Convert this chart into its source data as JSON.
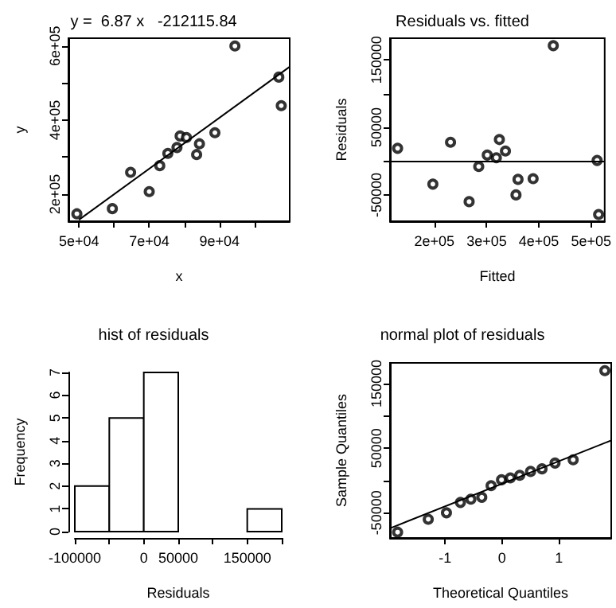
{
  "chart_data": [
    {
      "type": "scatter",
      "title": "y =  6.87 x   -212115.84",
      "xlabel": "x",
      "ylabel": "y",
      "marker": "circle",
      "grid": false,
      "xlim": [
        47000,
        110000
      ],
      "ylim": [
        127000,
        621000
      ],
      "xticks": [
        {
          "value": 50000,
          "label": "5e+04"
        },
        {
          "value": 60000,
          "label": null
        },
        {
          "value": 70000,
          "label": "7e+04"
        },
        {
          "value": 80000,
          "label": null
        },
        {
          "value": 90000,
          "label": "9e+04"
        },
        {
          "value": 100000,
          "label": null
        }
      ],
      "yticks": [
        {
          "value": 200000,
          "label": "2e+05"
        },
        {
          "value": 300000,
          "label": null
        },
        {
          "value": 400000,
          "label": "4e+05"
        },
        {
          "value": 500000,
          "label": null
        },
        {
          "value": 600000,
          "label": "6e+05"
        }
      ],
      "series": [
        {
          "type": "scatter",
          "color": "#000000",
          "x": [
            49400,
            59500,
            64700,
            70000,
            73000,
            75300,
            77900,
            78800,
            80600,
            83500,
            84300,
            88700,
            94400,
            106900,
            107600
          ],
          "values": [
            147000,
            161000,
            259000,
            207000,
            277000,
            310000,
            326000,
            357000,
            353000,
            307000,
            336000,
            366000,
            600000,
            516000,
            439000
          ]
        },
        {
          "type": "line",
          "marker": "none",
          "color": "#000000",
          "x": [
            50000,
            110000
          ],
          "values": [
            131000,
            544000
          ]
        }
      ]
    },
    {
      "type": "scatter",
      "title": "Residuals vs. fitted",
      "xlabel": "Fitted",
      "ylabel": "Residuals",
      "marker": "circle",
      "grid": false,
      "xlim": [
        115000,
        526000
      ],
      "ylim": [
        -89000,
        182000
      ],
      "xticks": [
        {
          "value": 200000,
          "label": "2e+05"
        },
        {
          "value": 300000,
          "label": "3e+05"
        },
        {
          "value": 400000,
          "label": "4e+05"
        },
        {
          "value": 500000,
          "label": "5e+05"
        }
      ],
      "yticks": [
        {
          "value": -50000,
          "label": "-50000"
        },
        {
          "value": 0,
          "label": null
        },
        {
          "value": 50000,
          "label": "50000"
        },
        {
          "value": 100000,
          "label": null
        },
        {
          "value": 150000,
          "label": "150000"
        }
      ],
      "ref_lines": [
        {
          "axis": "y",
          "value": 0,
          "color": "#000000"
        }
      ],
      "series": [
        {
          "type": "scatter",
          "color": "#000000",
          "x": [
            129600,
            197100,
            230900,
            266500,
            284900,
            301200,
            318600,
            324400,
            336000,
            356200,
            360100,
            389000,
            427600,
            511500,
            514400
          ],
          "values": [
            19000,
            -34000,
            28000,
            -60000,
            -8000,
            9000,
            5000,
            32000,
            15000,
            -50000,
            -27000,
            -26000,
            171000,
            1000,
            -79000
          ]
        }
      ]
    },
    {
      "type": "histogram",
      "title": "hist of residuals",
      "xlabel": "Residuals",
      "ylabel": "Frequency",
      "color": "#ffffff",
      "grid": false,
      "bins": [
        -100000,
        -50000,
        0,
        50000,
        100000,
        150000,
        200000
      ],
      "values": [
        2,
        5,
        7,
        0,
        0,
        1
      ],
      "xlim": [
        -100000,
        200000
      ],
      "ylim": [
        0,
        7
      ],
      "xticks": [
        -100000,
        {
          "value": -50000,
          "label": null
        },
        0,
        50000,
        {
          "value": 100000,
          "label": null
        },
        150000,
        {
          "value": 200000,
          "label": null
        }
      ],
      "yticks": [
        0,
        1,
        2,
        3,
        4,
        5,
        6,
        7
      ]
    },
    {
      "type": "scatter",
      "title": "normal plot of residuals",
      "xlabel": "Theoretical Quantiles",
      "ylabel": "Sample Quantiles",
      "marker": "circle",
      "grid": false,
      "xlim": [
        -1.97,
        1.92
      ],
      "ylim": [
        -89000,
        182000
      ],
      "xticks": [
        -1,
        0,
        1
      ],
      "yticks": [
        {
          "value": -50000,
          "label": "-50000"
        },
        {
          "value": 0,
          "label": null
        },
        {
          "value": 50000,
          "label": "50000"
        },
        {
          "value": 100000,
          "label": null
        },
        {
          "value": 150000,
          "label": "150000"
        }
      ],
      "series": [
        {
          "type": "scatter",
          "color": "#000000",
          "x": [
            -1.836,
            -1.297,
            -0.977,
            -0.731,
            -0.548,
            -0.356,
            -0.192,
            -0.009,
            0.146,
            0.311,
            0.502,
            0.703,
            0.932,
            1.251,
            1.808
          ],
          "values": [
            -80000,
            -60000,
            -50000,
            -34000,
            -29000,
            -26000,
            -8000,
            1000,
            4000,
            8000,
            14000,
            18000,
            27000,
            32000,
            170000
          ]
        },
        {
          "type": "line",
          "marker": "none",
          "color": "#000000",
          "x": [
            -1.97,
            1.92
          ],
          "values": [
            -74000,
            62000
          ]
        }
      ]
    }
  ]
}
